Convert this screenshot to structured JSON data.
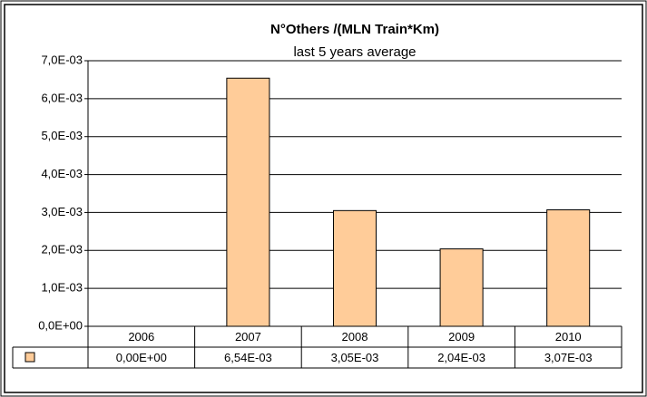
{
  "chart_data": {
    "type": "bar",
    "title": "N°Others /(MLN Train*Km)",
    "subtitle": "last 5 years average",
    "categories": [
      "2006",
      "2007",
      "2008",
      "2009",
      "2010"
    ],
    "values": [
      0,
      0.00654,
      0.00305,
      0.00204,
      0.00307
    ],
    "value_labels": [
      "0,00E+00",
      "6,54E-03",
      "3,05E-03",
      "2,04E-03",
      "3,07E-03"
    ],
    "color": "#ffcc99",
    "ylim": [
      0,
      0.007
    ],
    "yticks": [
      {
        "value": 0,
        "label": "0,0E+00"
      },
      {
        "value": 0.001,
        "label": "1,0E-03"
      },
      {
        "value": 0.002,
        "label": "2,0E-03"
      },
      {
        "value": 0.003,
        "label": "3,0E-03"
      },
      {
        "value": 0.004,
        "label": "4,0E-03"
      },
      {
        "value": 0.005,
        "label": "5,0E-03"
      },
      {
        "value": 0.006,
        "label": "6,0E-03"
      },
      {
        "value": 0.007,
        "label": "7,0E-03"
      }
    ],
    "grid": true
  }
}
